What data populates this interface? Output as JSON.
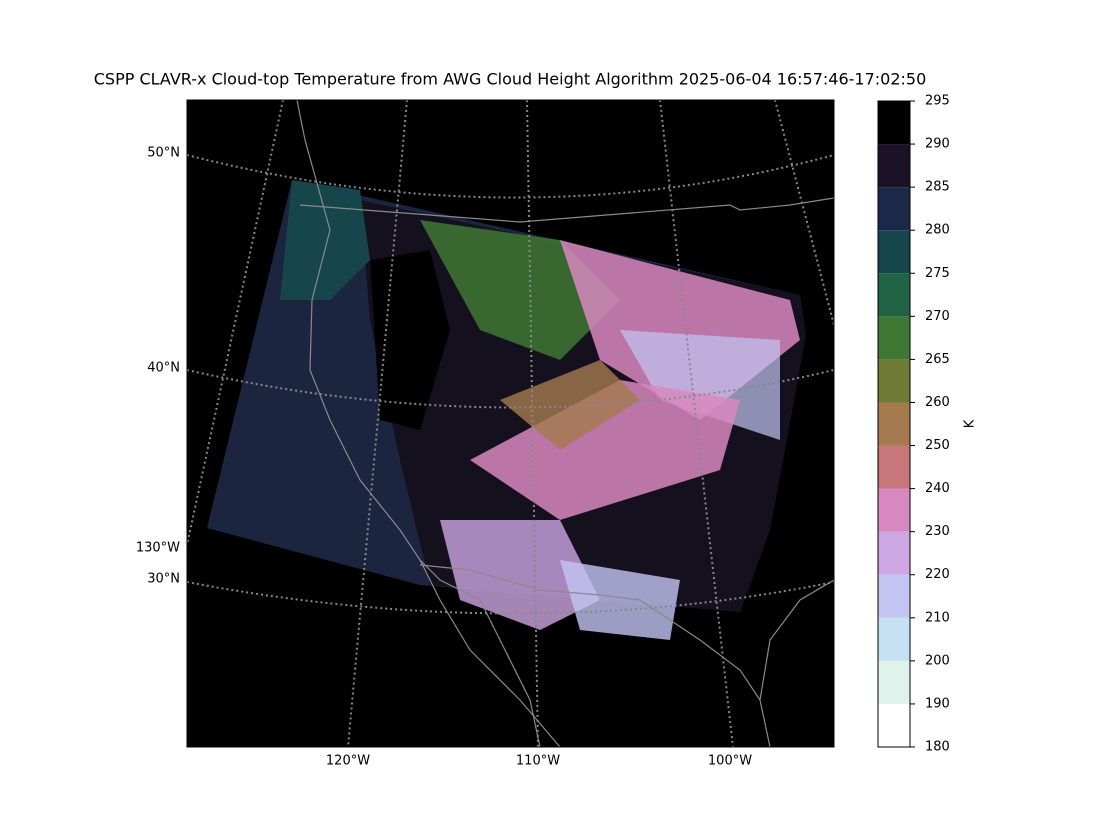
{
  "title": "CSPP CLAVR-x Cloud-top Temperature from AWG Cloud Height Algorithm 2025-06-04 16:57:46-17:02:50",
  "map": {
    "lat_labels": [
      "50°N",
      "40°N",
      "30°N"
    ],
    "lon_labels": [
      "130°W",
      "120°W",
      "110°W",
      "100°W"
    ]
  },
  "colorbar": {
    "label": "K",
    "ticks": [
      180,
      190,
      200,
      210,
      220,
      230,
      240,
      250,
      260,
      265,
      270,
      275,
      280,
      285,
      290,
      295
    ],
    "colors": [
      "#ffffff",
      "#def3ec",
      "#c6e2f2",
      "#c3c4f2",
      "#cda6e4",
      "#d888c0",
      "#c7767a",
      "#a57a4e",
      "#6f7a34",
      "#3e7834",
      "#1f6244",
      "#16464c",
      "#1c2848",
      "#1c1228",
      "#000000"
    ]
  }
}
